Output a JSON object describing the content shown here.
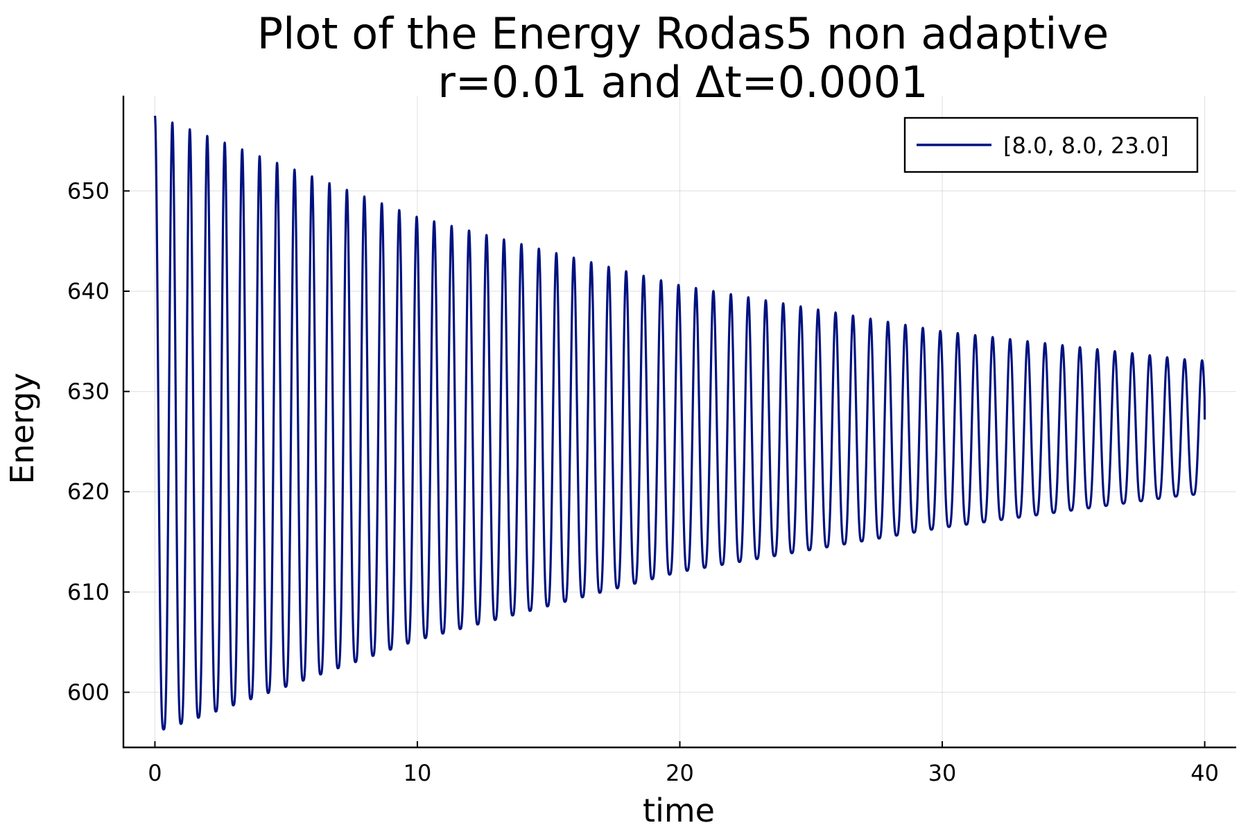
{
  "chart_data": {
    "type": "line",
    "title_line1": "Plot of the Energy Rodas5 non adaptive",
    "title_line2": "r=0.01 and Δt=0.0001",
    "xlabel": "time",
    "ylabel": "Energy",
    "xlim": [
      -1.2,
      41.2
    ],
    "ylim": [
      594.5,
      659.5
    ],
    "xticks": [
      0,
      10,
      20,
      30,
      40
    ],
    "yticks": [
      600,
      610,
      620,
      630,
      640,
      650
    ],
    "grid": true,
    "legend_position": "top-right",
    "series": [
      {
        "name": "[8.0, 8.0, 23.0]",
        "color": "#00127f",
        "start_value": 657.5,
        "end_value": 627.2,
        "t_start": 0,
        "t_end": 40,
        "oscillation_period": 0.665,
        "upper_envelope": [
          [
            0.0,
            657.5
          ],
          [
            10.0,
            647.4
          ],
          [
            20.0,
            640.6
          ],
          [
            30.0,
            636.0
          ],
          [
            39.6,
            633.1
          ]
        ],
        "lower_envelope": [
          [
            0.4,
            596.3
          ],
          [
            10.0,
            605.2
          ],
          [
            20.0,
            612.0
          ],
          [
            30.0,
            616.4
          ],
          [
            39.4,
            619.7
          ]
        ]
      }
    ]
  }
}
